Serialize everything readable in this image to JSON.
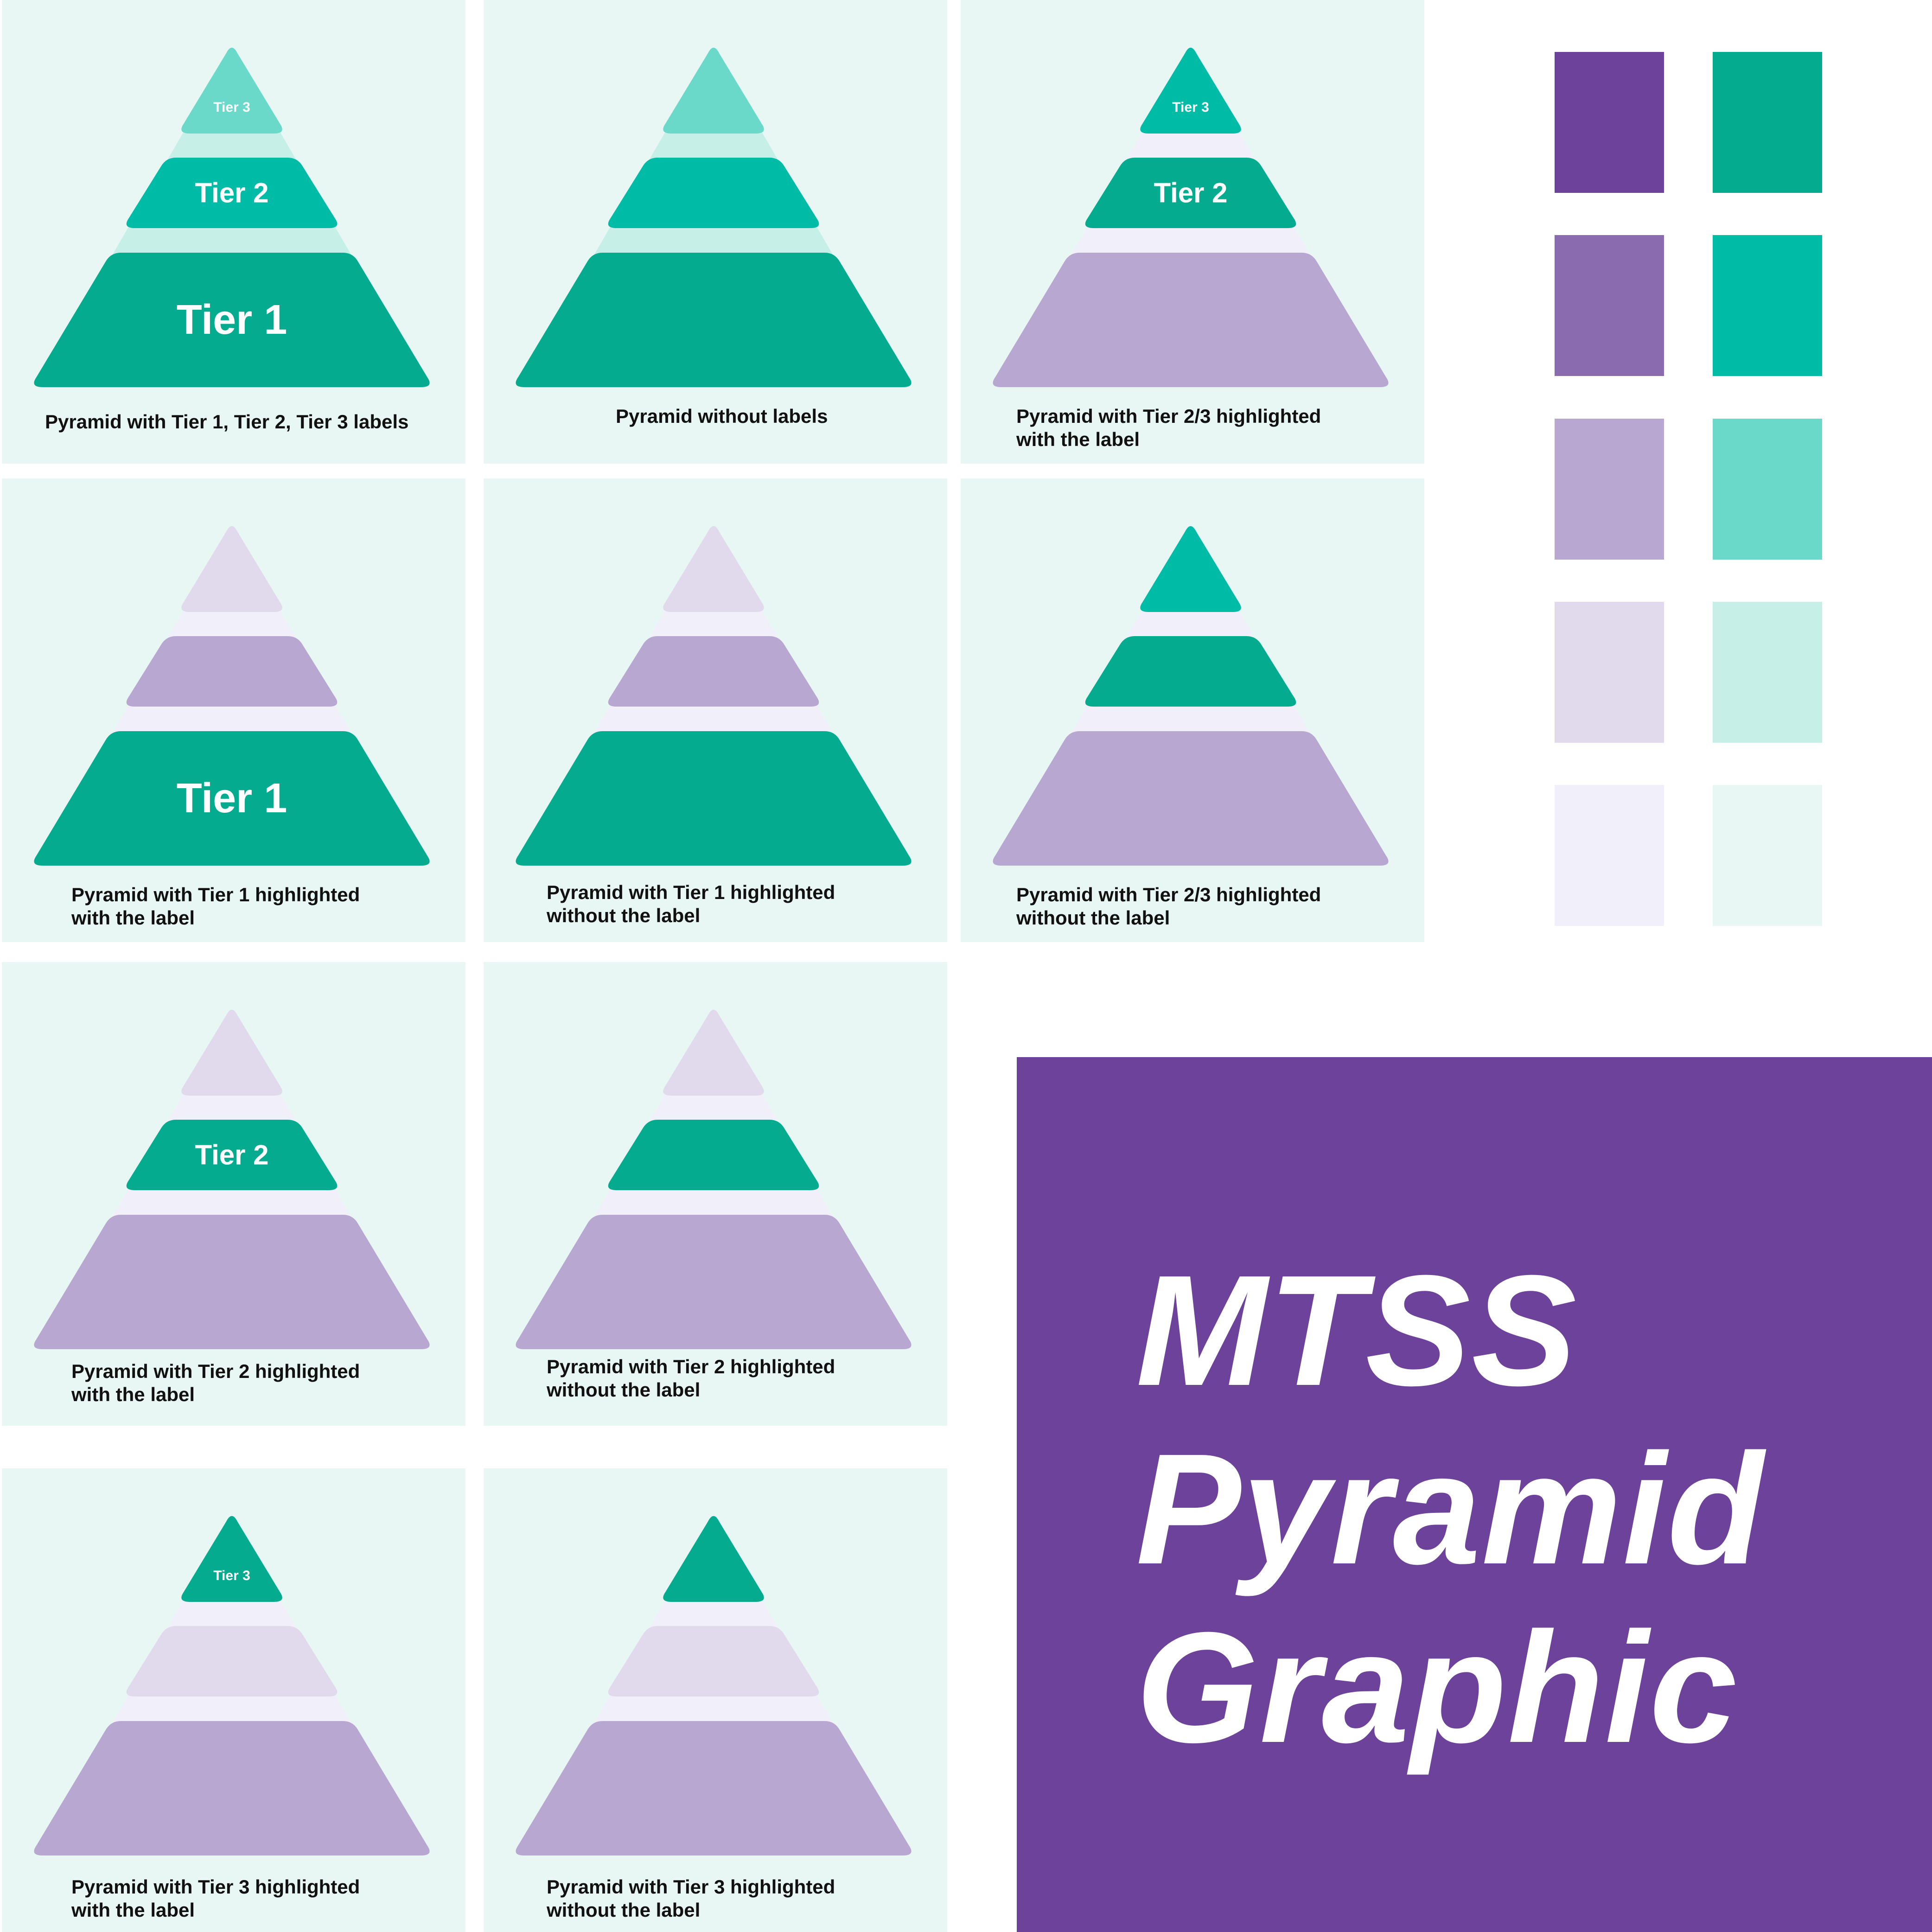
{
  "colors": {
    "teal_dark": "#04ab8f",
    "teal": "#00bba6",
    "teal_mid": "#6ad9c9",
    "teal_light": "#c6efe8",
    "teal_pale": "#e8f7f3",
    "purple_dark": "#6c429b",
    "purple": "#8b6bb0",
    "purple_mid": "#b8a7d1",
    "purple_light": "#e1d9ec",
    "purple_pale": "#f1eff9",
    "white": "#ffffff"
  },
  "panels": [
    {
      "id": "p1",
      "caption": "Pyramid with Tier 1, Tier 2, Tier 3 labels",
      "tier3": {
        "fill": "#6ad9c9",
        "label": "Tier 3"
      },
      "tier2": {
        "fill": "#00bba6",
        "label": "Tier 2"
      },
      "tier1": {
        "fill": "#04ab8f",
        "label": "Tier 1"
      },
      "gap_fill": "#c6efe8"
    },
    {
      "id": "p2",
      "caption": "Pyramid without labels",
      "tier3": {
        "fill": "#6ad9c9",
        "label": ""
      },
      "tier2": {
        "fill": "#00bba6",
        "label": ""
      },
      "tier1": {
        "fill": "#04ab8f",
        "label": ""
      },
      "gap_fill": "#c6efe8"
    },
    {
      "id": "p3",
      "caption": "Pyramid with Tier 2/3 highlighted\nwith the label",
      "tier3": {
        "fill": "#00bba6",
        "label": "Tier 3"
      },
      "tier2": {
        "fill": "#04ab8f",
        "label": "Tier 2"
      },
      "tier1": {
        "fill": "#b8a7d1",
        "label": ""
      },
      "gap_fill": "#f1eff9"
    },
    {
      "id": "p4",
      "caption": "Pyramid with Tier 1 highlighted\nwith the label",
      "tier3": {
        "fill": "#e1d9ec",
        "label": ""
      },
      "tier2": {
        "fill": "#b8a7d1",
        "label": ""
      },
      "tier1": {
        "fill": "#04ab8f",
        "label": "Tier 1"
      },
      "gap_fill": "#f1eff9"
    },
    {
      "id": "p5",
      "caption": "Pyramid with Tier 1 highlighted\nwithout the label",
      "tier3": {
        "fill": "#e1d9ec",
        "label": ""
      },
      "tier2": {
        "fill": "#b8a7d1",
        "label": ""
      },
      "tier1": {
        "fill": "#04ab8f",
        "label": ""
      },
      "gap_fill": "#f1eff9"
    },
    {
      "id": "p6",
      "caption": "Pyramid with Tier 2/3 highlighted\nwithout the label",
      "tier3": {
        "fill": "#00bba6",
        "label": ""
      },
      "tier2": {
        "fill": "#04ab8f",
        "label": ""
      },
      "tier1": {
        "fill": "#b8a7d1",
        "label": ""
      },
      "gap_fill": "#f1eff9"
    },
    {
      "id": "p7",
      "caption": "Pyramid with Tier 2 highlighted\nwith the label",
      "tier3": {
        "fill": "#e1d9ec",
        "label": ""
      },
      "tier2": {
        "fill": "#04ab8f",
        "label": "Tier 2"
      },
      "tier1": {
        "fill": "#b8a7d1",
        "label": ""
      },
      "gap_fill": "#f1eff9"
    },
    {
      "id": "p8",
      "caption": "Pyramid with Tier 2 highlighted\nwithout the label",
      "tier3": {
        "fill": "#e1d9ec",
        "label": ""
      },
      "tier2": {
        "fill": "#04ab8f",
        "label": ""
      },
      "tier1": {
        "fill": "#b8a7d1",
        "label": ""
      },
      "gap_fill": "#f1eff9"
    },
    {
      "id": "p9",
      "caption": "Pyramid with Tier 3 highlighted\nwith the label",
      "tier3": {
        "fill": "#04ab8f",
        "label": "Tier 3"
      },
      "tier2": {
        "fill": "#e1d9ec",
        "label": ""
      },
      "tier1": {
        "fill": "#b8a7d1",
        "label": ""
      },
      "gap_fill": "#f1eff9"
    },
    {
      "id": "p10",
      "caption": "Pyramid with Tier 3 highlighted\nwithout the label",
      "tier3": {
        "fill": "#04ab8f",
        "label": ""
      },
      "tier2": {
        "fill": "#e1d9ec",
        "label": ""
      },
      "tier1": {
        "fill": "#b8a7d1",
        "label": ""
      },
      "gap_fill": "#f1eff9"
    }
  ],
  "palette": {
    "purples": [
      "#6c429b",
      "#8b6bb0",
      "#b8a7d1",
      "#e1d9ec",
      "#f1eff9"
    ],
    "teals": [
      "#04ab8f",
      "#00bba6",
      "#6ad9c9",
      "#c6efe8",
      "#e8f7f3"
    ]
  },
  "title": {
    "line1": "MTSS",
    "line2": "Pyramid",
    "line3": "Graphic"
  }
}
